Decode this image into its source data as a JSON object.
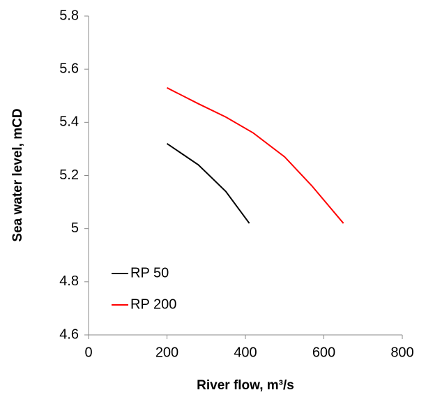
{
  "chart_data": {
    "type": "line",
    "x_label": "River flow, m³/s",
    "y_label": "Sea water level, mCD",
    "series": [
      {
        "name": "RP 50",
        "color": "#000000",
        "x": [
          200,
          280,
          350,
          410
        ],
        "values": [
          5.32,
          5.24,
          5.14,
          5.02
        ]
      },
      {
        "name": "RP 200",
        "color": "#ff0000",
        "x": [
          200,
          280,
          350,
          420,
          500,
          570,
          650
        ],
        "values": [
          5.53,
          5.47,
          5.42,
          5.36,
          5.27,
          5.16,
          5.02
        ]
      }
    ],
    "xlim": [
      0,
      800
    ],
    "xticks": [
      0,
      200,
      400,
      600,
      800
    ],
    "ylim": [
      4.6,
      5.8
    ],
    "yticks": [
      4.6,
      4.8,
      5,
      5.2,
      5.4,
      5.6,
      5.8
    ],
    "grid": false,
    "legend": "lower-left"
  }
}
